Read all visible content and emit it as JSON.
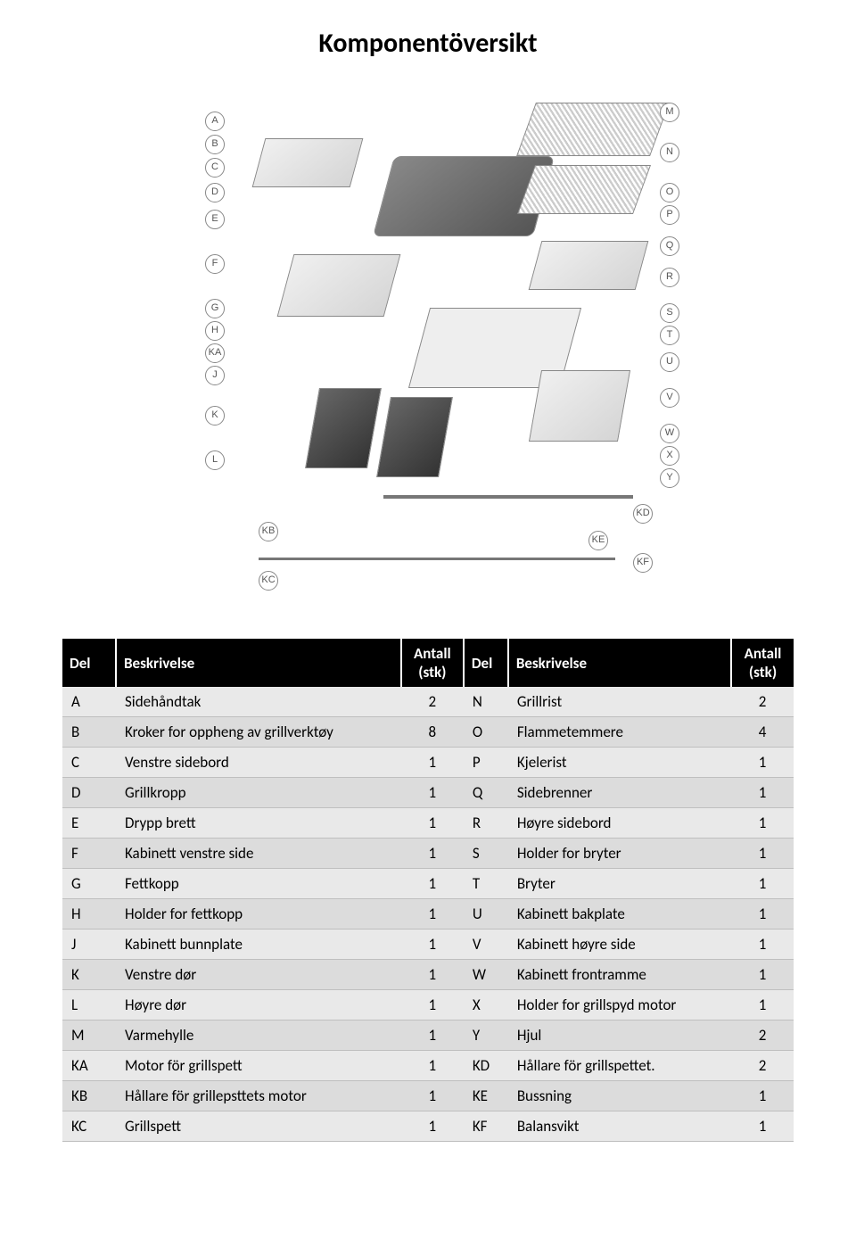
{
  "title": "Komponentöversikt",
  "headers": {
    "del": "Del",
    "besk": "Beskrivelse",
    "ant": "Antall (stk)"
  },
  "callouts_left": [
    "A",
    "B",
    "C",
    "D",
    "E",
    "F",
    "G",
    "H",
    "KA",
    "J",
    "K",
    "L"
  ],
  "callouts_right": [
    "M",
    "N",
    "O",
    "P",
    "Q",
    "R",
    "S",
    "T",
    "U",
    "V",
    "W",
    "X",
    "Y"
  ],
  "callouts_bottom": [
    "KB",
    "KC",
    "KE",
    "KF",
    "KD"
  ],
  "rows": [
    {
      "c1": "A",
      "d1": "Sidehåndtak",
      "n1": "2",
      "c2": "N",
      "d2": "Grillrist",
      "n2": "2"
    },
    {
      "c1": "B",
      "d1": "Kroker for oppheng av grillverktøy",
      "n1": "8",
      "c2": "O",
      "d2": "Flammetemmere",
      "n2": "4"
    },
    {
      "c1": "C",
      "d1": "Venstre sidebord",
      "n1": "1",
      "c2": "P",
      "d2": "Kjelerist",
      "n2": "1"
    },
    {
      "c1": "D",
      "d1": "Grillkropp",
      "n1": "1",
      "c2": "Q",
      "d2": "Sidebrenner",
      "n2": "1"
    },
    {
      "c1": "E",
      "d1": "Drypp brett",
      "n1": "1",
      "c2": "R",
      "d2": "Høyre sidebord",
      "n2": "1"
    },
    {
      "c1": "F",
      "d1": "Kabinett venstre side",
      "n1": "1",
      "c2": "S",
      "d2": "Holder for bryter",
      "n2": "1"
    },
    {
      "c1": "G",
      "d1": "Fettkopp",
      "n1": "1",
      "c2": "T",
      "d2": "Bryter",
      "n2": "1"
    },
    {
      "c1": "H",
      "d1": "Holder for fettkopp",
      "n1": "1",
      "c2": "U",
      "d2": "Kabinett bakplate",
      "n2": "1"
    },
    {
      "c1": "J",
      "d1": "Kabinett bunnplate",
      "n1": "1",
      "c2": "V",
      "d2": "Kabinett høyre side",
      "n2": "1"
    },
    {
      "c1": "K",
      "d1": "Venstre dør",
      "n1": "1",
      "c2": "W",
      "d2": "Kabinett frontramme",
      "n2": "1"
    },
    {
      "c1": "L",
      "d1": "Høyre dør",
      "n1": "1",
      "c2": "X",
      "d2": "Holder for grillspyd motor",
      "n2": "1"
    },
    {
      "c1": "M",
      "d1": "Varmehylle",
      "n1": "1",
      "c2": "Y",
      "d2": "Hjul",
      "n2": "2"
    },
    {
      "c1": "KA",
      "d1": "Motor för grillspett",
      "n1": "1",
      "c2": "KD",
      "d2": "Hållare för grillspettet.",
      "n2": "2"
    },
    {
      "c1": "KB",
      "d1": "Hållare för grillepsttets motor",
      "n1": "1",
      "c2": "KE",
      "d2": "Bussning",
      "n2": "1"
    },
    {
      "c1": "KC",
      "d1": "Grillspett",
      "n1": "1",
      "c2": "KF",
      "d2": "Balansvikt",
      "n2": "1"
    }
  ],
  "colors": {
    "header_bg": "#000000",
    "header_fg": "#ffffff",
    "row_light": "#e9e9e9",
    "row_dark": "#dcdcdc",
    "border": "#bfbfbf"
  }
}
